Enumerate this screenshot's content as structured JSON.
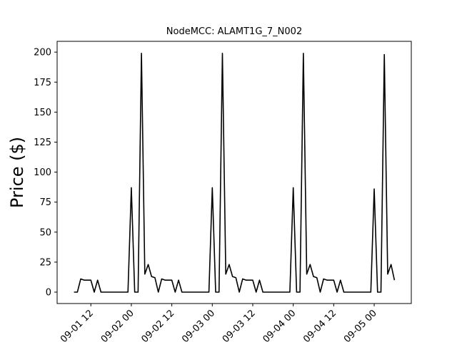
{
  "chart_data": {
    "type": "line",
    "title": "NodeMCC: ALAMT1G_7_N002",
    "y_label": "Price ($)",
    "x": [
      "09-01 07",
      "09-01 08",
      "09-01 09",
      "09-01 10",
      "09-01 11",
      "09-01 12",
      "09-01 13",
      "09-01 14",
      "09-01 15",
      "09-01 16",
      "09-01 17",
      "09-01 18",
      "09-01 19",
      "09-01 20",
      "09-01 21",
      "09-01 22",
      "09-01 23",
      "09-02 00",
      "09-02 01",
      "09-02 02",
      "09-02 03",
      "09-02 04",
      "09-02 05",
      "09-02 06",
      "09-02 07",
      "09-02 08",
      "09-02 09",
      "09-02 10",
      "09-02 11",
      "09-02 12",
      "09-02 13",
      "09-02 14",
      "09-02 15",
      "09-02 16",
      "09-02 17",
      "09-02 18",
      "09-02 19",
      "09-02 20",
      "09-02 21",
      "09-02 22",
      "09-02 23",
      "09-03 00",
      "09-03 01",
      "09-03 02",
      "09-03 03",
      "09-03 04",
      "09-03 05",
      "09-03 06",
      "09-03 07",
      "09-03 08",
      "09-03 09",
      "09-03 10",
      "09-03 11",
      "09-03 12",
      "09-03 13",
      "09-03 14",
      "09-03 15",
      "09-03 16",
      "09-03 17",
      "09-03 18",
      "09-03 19",
      "09-03 20",
      "09-03 21",
      "09-03 22",
      "09-03 23",
      "09-04 00",
      "09-04 01",
      "09-04 02",
      "09-04 03",
      "09-04 04",
      "09-04 05",
      "09-04 06",
      "09-04 07",
      "09-04 08",
      "09-04 09",
      "09-04 10",
      "09-04 11",
      "09-04 12",
      "09-04 13",
      "09-04 14",
      "09-04 15",
      "09-04 16",
      "09-04 17",
      "09-04 18",
      "09-04 19",
      "09-04 20",
      "09-04 21",
      "09-04 22",
      "09-04 23",
      "09-05 00",
      "09-05 01",
      "09-05 02",
      "09-05 03",
      "09-05 04",
      "09-05 05",
      "09-05 06"
    ],
    "series": [
      {
        "color": "#000000",
        "values": [
          0,
          0,
          11,
          10,
          10,
          10,
          0,
          10,
          0,
          0,
          0,
          0,
          0,
          0,
          0,
          0,
          0,
          87,
          0,
          0,
          199,
          15,
          23,
          13,
          12,
          0,
          11,
          10,
          10,
          10,
          0,
          10,
          0,
          0,
          0,
          0,
          0,
          0,
          0,
          0,
          0,
          87,
          0,
          0,
          199,
          15,
          23,
          13,
          12,
          0,
          11,
          10,
          10,
          10,
          0,
          10,
          0,
          0,
          0,
          0,
          0,
          0,
          0,
          0,
          0,
          87,
          0,
          0,
          199,
          15,
          23,
          13,
          12,
          0,
          11,
          10,
          10,
          10,
          0,
          10,
          0,
          0,
          0,
          0,
          0,
          0,
          0,
          0,
          0,
          86,
          0,
          0,
          198,
          15,
          23,
          10
        ]
      }
    ],
    "xlim": [
      "09-01 02",
      "09-05 11"
    ],
    "xticks": [
      "09-01 12",
      "09-02 00",
      "09-02 12",
      "09-03 00",
      "09-03 12",
      "09-04 00",
      "09-04 12",
      "09-05 00"
    ],
    "ylim": [
      -9.5,
      209
    ],
    "yticks": [
      0,
      25,
      50,
      75,
      100,
      125,
      150,
      175,
      200
    ]
  }
}
